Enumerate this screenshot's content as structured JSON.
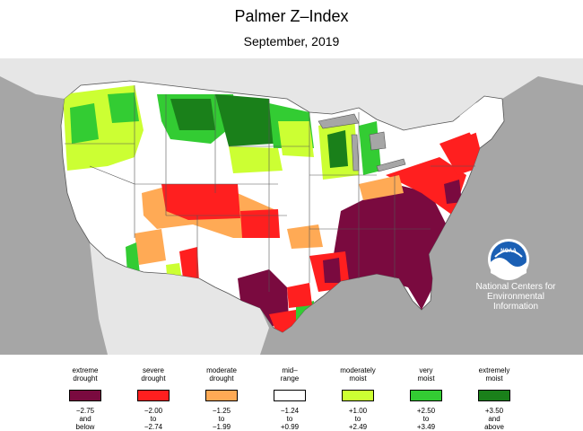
{
  "title": "Palmer Z–Index",
  "subtitle": "September, 2019",
  "agency": {
    "line1": "National Centers for",
    "line2": "Environmental",
    "line3": "Information",
    "logo_text": "NOAA",
    "logo_icon": "noaa-logo-icon"
  },
  "colors": {
    "ocean": "#a6a6a6",
    "land_outside": "#e6e6e6",
    "extreme_drought": "#7a0a3f",
    "severe_drought": "#ff1f1f",
    "moderate_drought": "#ffaa55",
    "mid_range": "#ffffff",
    "moderately_moist": "#ccff33",
    "very_moist": "#33cc33",
    "extremely_moist": "#1a801a"
  },
  "legend": [
    {
      "label1": "extreme",
      "label2": "drought",
      "range1": "−2.75",
      "range2": "and",
      "range3": "below",
      "color": "#7a0a3f"
    },
    {
      "label1": "severe",
      "label2": "drought",
      "range1": "−2.00",
      "range2": "to",
      "range3": "−2.74",
      "color": "#ff1f1f"
    },
    {
      "label1": "moderate",
      "label2": "drought",
      "range1": "−1.25",
      "range2": "to",
      "range3": "−1.99",
      "color": "#ffaa55"
    },
    {
      "label1": "mid–",
      "label2": "range",
      "range1": "−1.24",
      "range2": "to",
      "range3": "+0.99",
      "color": "#ffffff"
    },
    {
      "label1": "moderately",
      "label2": "moist",
      "range1": "+1.00",
      "range2": "to",
      "range3": "+2.49",
      "color": "#ccff33"
    },
    {
      "label1": "very",
      "label2": "moist",
      "range1": "+2.50",
      "range2": "to",
      "range3": "+3.49",
      "color": "#33cc33"
    },
    {
      "label1": "extremely",
      "label2": "moist",
      "range1": "+3.50",
      "range2": "and",
      "range3": "above",
      "color": "#1a801a"
    }
  ]
}
